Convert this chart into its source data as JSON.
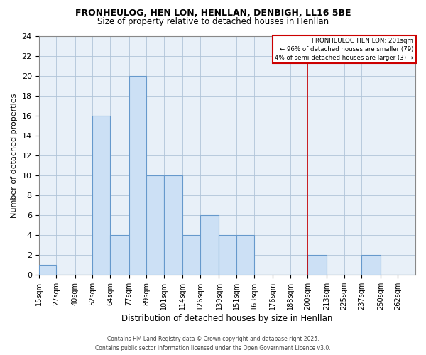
{
  "title": "FRONHEULOG, HEN LON, HENLLAN, DENBIGH, LL16 5BE",
  "subtitle": "Size of property relative to detached houses in Henllan",
  "xlabel": "Distribution of detached houses by size in Henllan",
  "ylabel": "Number of detached properties",
  "bins": [
    "15sqm",
    "27sqm",
    "40sqm",
    "52sqm",
    "64sqm",
    "77sqm",
    "89sqm",
    "101sqm",
    "114sqm",
    "126sqm",
    "139sqm",
    "151sqm",
    "163sqm",
    "176sqm",
    "188sqm",
    "200sqm",
    "213sqm",
    "225sqm",
    "237sqm",
    "250sqm",
    "262sqm"
  ],
  "bin_edges": [
    15,
    27,
    40,
    52,
    64,
    77,
    89,
    101,
    114,
    126,
    139,
    151,
    163,
    176,
    188,
    200,
    213,
    225,
    237,
    250,
    262
  ],
  "counts": [
    1,
    0,
    0,
    16,
    4,
    20,
    10,
    10,
    4,
    6,
    4,
    4,
    0,
    0,
    0,
    2,
    0,
    0,
    2,
    0,
    0
  ],
  "bar_color": "#cce0f5",
  "bar_edge_color": "#6699cc",
  "plot_bg_color": "#e8f0f8",
  "vline_x": 200,
  "vline_color": "#cc0000",
  "ylim": [
    0,
    24
  ],
  "yticks": [
    0,
    2,
    4,
    6,
    8,
    10,
    12,
    14,
    16,
    18,
    20,
    22,
    24
  ],
  "legend_title": "FRONHEULOG HEN LON: 201sqm",
  "legend_line1": "← 96% of detached houses are smaller (79)",
  "legend_line2": "4% of semi-detached houses are larger (3) →",
  "legend_box_color": "#cc0000",
  "footer_line1": "Contains HM Land Registry data © Crown copyright and database right 2025.",
  "footer_line2": "Contains public sector information licensed under the Open Government Licence v3.0.",
  "background_color": "#ffffff",
  "grid_color": "#b0c4d8"
}
